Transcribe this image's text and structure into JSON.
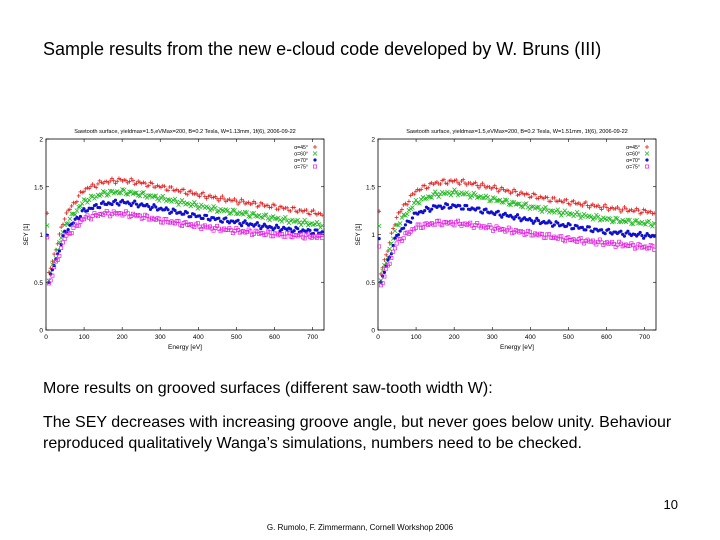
{
  "slide": {
    "title": "Sample results from the new e-cloud code developed by W. Bruns (III)",
    "text1": "More results on grooved surfaces (different saw-tooth width W):",
    "text2": "The SEY decreases with increasing groove angle, but never goes below unity. Behaviour reproduced qualitatively Wanga’s simulations, numbers need to be checked.",
    "page_number": "10",
    "footer": "G. Rumolo, F. Zimmermann, Cornell Workshop 2006"
  },
  "chart_data": [
    {
      "type": "scatter",
      "title": "Sawtooth surface, yieldmax=1.5,eVMax=200, B=0.2 Tesla, W=1.13mm, 1f(6), 2006-09-22",
      "xlabel": "Energy [eV]",
      "ylabel": "SEY [1]",
      "xlim": [
        0,
        730
      ],
      "ylim": [
        0,
        2
      ],
      "xticks": [
        "0",
        "100",
        "200",
        "300",
        "400",
        "500",
        "600",
        "700"
      ],
      "yticks": [
        "0",
        "0.5",
        "1",
        "1.5",
        "2"
      ],
      "series": [
        {
          "name": "α=45°",
          "color": "#e02020",
          "marker": "+",
          "x": [
            5,
            50,
            100,
            150,
            200,
            250,
            300,
            350,
            400,
            450,
            500,
            550,
            600,
            650,
            700,
            730
          ],
          "y": [
            0.55,
            1.2,
            1.47,
            1.55,
            1.57,
            1.54,
            1.5,
            1.46,
            1.42,
            1.38,
            1.35,
            1.32,
            1.29,
            1.26,
            1.23,
            1.21
          ]
        },
        {
          "name": "α=60°",
          "color": "#22b822",
          "marker": "x",
          "x": [
            5,
            50,
            100,
            150,
            200,
            250,
            300,
            350,
            400,
            450,
            500,
            550,
            600,
            650,
            700,
            730
          ],
          "y": [
            0.5,
            1.1,
            1.35,
            1.43,
            1.45,
            1.42,
            1.38,
            1.34,
            1.3,
            1.26,
            1.23,
            1.2,
            1.17,
            1.14,
            1.11,
            1.1
          ]
        },
        {
          "name": "α=70°",
          "color": "#1010cc",
          "marker": "*",
          "x": [
            5,
            50,
            100,
            150,
            200,
            250,
            300,
            350,
            400,
            450,
            500,
            550,
            600,
            650,
            700,
            730
          ],
          "y": [
            0.48,
            1.03,
            1.25,
            1.32,
            1.34,
            1.31,
            1.27,
            1.23,
            1.19,
            1.16,
            1.13,
            1.1,
            1.07,
            1.05,
            1.03,
            1.02
          ]
        },
        {
          "name": "α=75°",
          "color": "#e020e0",
          "marker": "□",
          "x": [
            5,
            50,
            100,
            150,
            200,
            250,
            300,
            350,
            400,
            450,
            500,
            550,
            600,
            650,
            700,
            730
          ],
          "y": [
            0.45,
            0.97,
            1.17,
            1.22,
            1.22,
            1.19,
            1.15,
            1.12,
            1.09,
            1.06,
            1.04,
            1.02,
            1.0,
            0.99,
            0.98,
            0.97
          ]
        }
      ]
    },
    {
      "type": "scatter",
      "title": "Sawtooth surface, yieldmax=1.5,eVMax=200, B=0.2 Tesla, W=1.51mm, 1f(6), 2006-09-22",
      "xlabel": "Energy [eV]",
      "ylabel": "SEY [1]",
      "xlim": [
        0,
        730
      ],
      "ylim": [
        0,
        2
      ],
      "xticks": [
        "0",
        "100",
        "200",
        "300",
        "400",
        "500",
        "600",
        "700"
      ],
      "yticks": [
        "0",
        "0.5",
        "1",
        "1.5",
        "2"
      ],
      "series": [
        {
          "name": "α=45°",
          "color": "#e02020",
          "marker": "+",
          "x": [
            5,
            50,
            100,
            150,
            200,
            250,
            300,
            350,
            400,
            450,
            500,
            550,
            600,
            650,
            700,
            730
          ],
          "y": [
            0.55,
            1.2,
            1.46,
            1.54,
            1.56,
            1.53,
            1.49,
            1.45,
            1.41,
            1.37,
            1.34,
            1.31,
            1.28,
            1.26,
            1.24,
            1.23
          ]
        },
        {
          "name": "α=60°",
          "color": "#22b822",
          "marker": "x",
          "x": [
            5,
            50,
            100,
            150,
            200,
            250,
            300,
            350,
            400,
            450,
            500,
            550,
            600,
            650,
            700,
            730
          ],
          "y": [
            0.5,
            1.1,
            1.34,
            1.42,
            1.44,
            1.41,
            1.37,
            1.33,
            1.29,
            1.25,
            1.22,
            1.19,
            1.16,
            1.14,
            1.12,
            1.11
          ]
        },
        {
          "name": "α=70°",
          "color": "#1010cc",
          "marker": "*",
          "x": [
            5,
            50,
            100,
            150,
            200,
            250,
            300,
            350,
            400,
            450,
            500,
            550,
            600,
            650,
            700,
            730
          ],
          "y": [
            0.47,
            1.0,
            1.22,
            1.29,
            1.3,
            1.27,
            1.23,
            1.19,
            1.15,
            1.12,
            1.09,
            1.06,
            1.03,
            1.01,
            0.99,
            0.98
          ]
        },
        {
          "name": "α=75°",
          "color": "#e020e0",
          "marker": "□",
          "x": [
            5,
            50,
            100,
            150,
            200,
            250,
            300,
            350,
            400,
            450,
            500,
            550,
            600,
            650,
            700,
            730
          ],
          "y": [
            0.44,
            0.92,
            1.08,
            1.12,
            1.12,
            1.1,
            1.07,
            1.04,
            1.01,
            0.98,
            0.95,
            0.93,
            0.91,
            0.89,
            0.87,
            0.86
          ]
        }
      ]
    }
  ]
}
